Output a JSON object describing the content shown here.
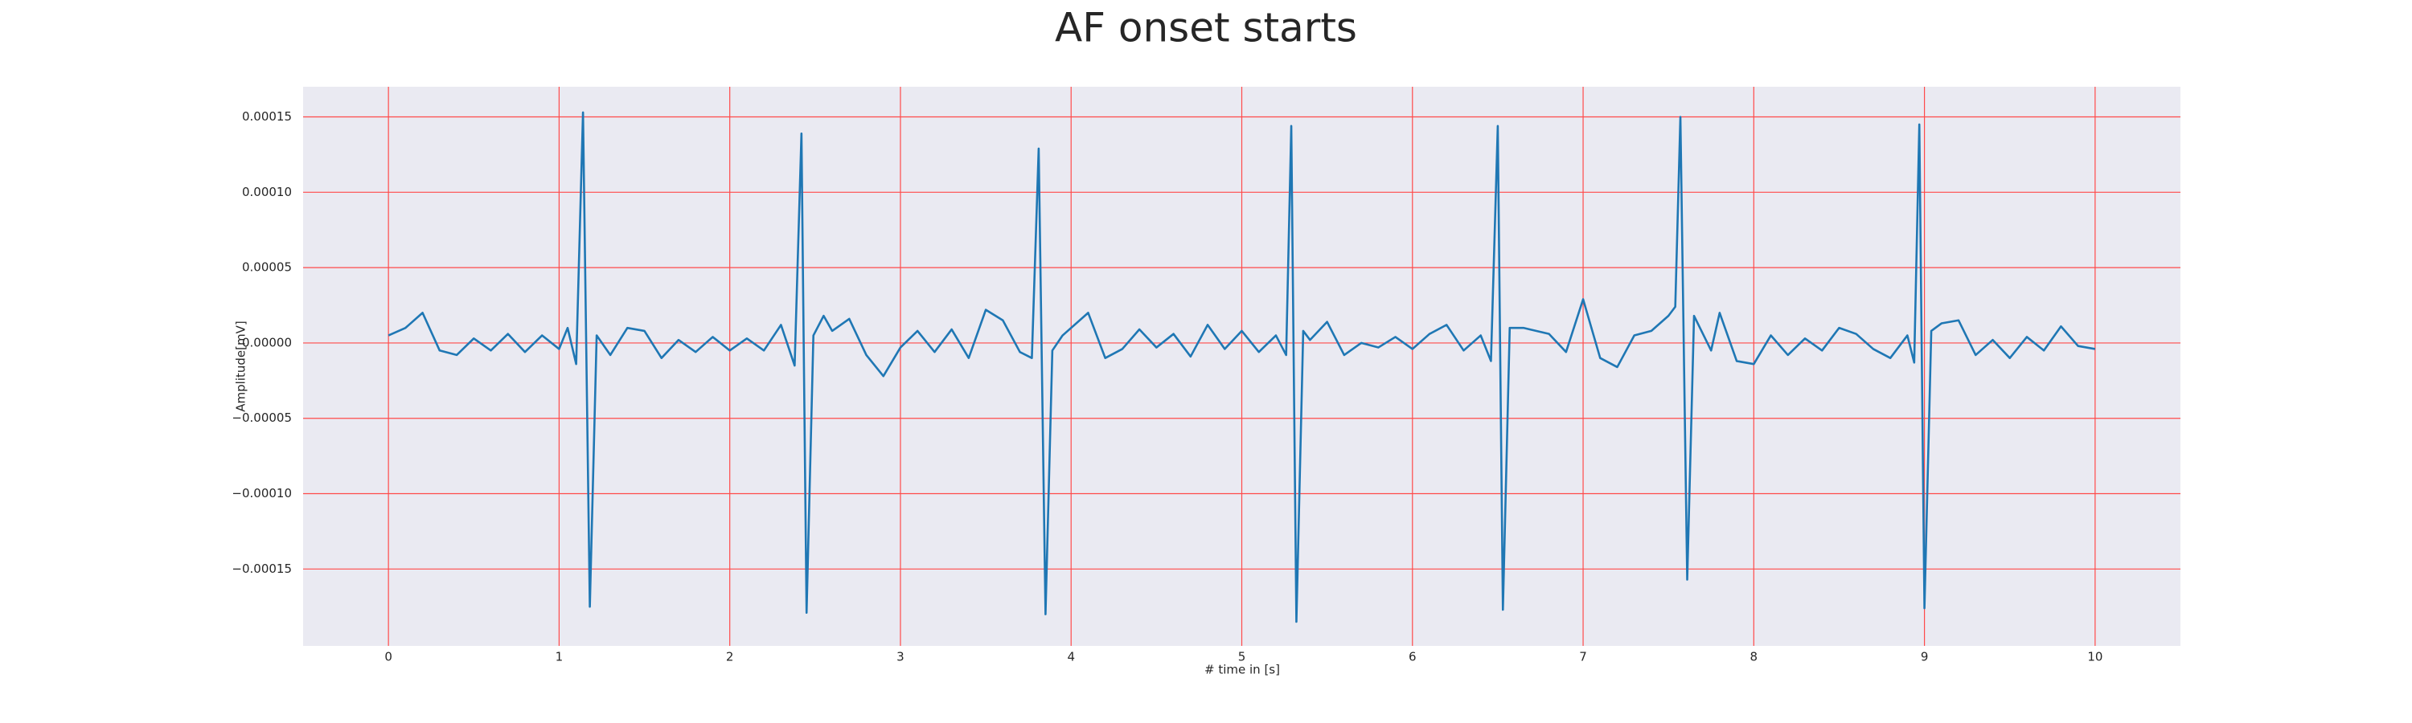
{
  "chart_data": {
    "type": "line",
    "title": "AF onset starts",
    "xlabel": "# time in [s]",
    "ylabel": "Amplitude[mV]",
    "color": "#1f77b4",
    "grid": true,
    "grid_color": "#ff4a4a",
    "background": "#eaeaf2",
    "xlim": [
      -0.5,
      10.5
    ],
    "ylim": [
      -0.000201,
      0.00017
    ],
    "xticks": [
      0,
      1,
      2,
      3,
      4,
      5,
      6,
      7,
      8,
      9,
      10
    ],
    "yticks": [
      {
        "value": -0.00015,
        "label": "−0.00015"
      },
      {
        "value": -0.0001,
        "label": "−0.00010"
      },
      {
        "value": -5e-05,
        "label": "−0.00005"
      },
      {
        "value": 0,
        "label": "0.00000"
      },
      5e-05,
      {
        "value": 0.0001,
        "label": "0.00010"
      },
      0.00015
    ],
    "x": [
      0.0,
      0.1,
      0.2,
      0.3,
      0.4,
      0.5,
      0.6,
      0.7,
      0.8,
      0.9,
      1.0,
      1.05,
      1.1,
      1.14,
      1.18,
      1.22,
      1.3,
      1.4,
      1.5,
      1.6,
      1.7,
      1.8,
      1.9,
      2.0,
      2.1,
      2.2,
      2.3,
      2.38,
      2.42,
      2.45,
      2.49,
      2.55,
      2.6,
      2.7,
      2.8,
      2.9,
      3.0,
      3.1,
      3.2,
      3.3,
      3.4,
      3.5,
      3.6,
      3.7,
      3.77,
      3.81,
      3.85,
      3.89,
      3.95,
      4.1,
      4.2,
      4.3,
      4.4,
      4.5,
      4.6,
      4.7,
      4.8,
      4.9,
      5.0,
      5.1,
      5.2,
      5.26,
      5.29,
      5.32,
      5.36,
      5.4,
      5.5,
      5.6,
      5.7,
      5.8,
      5.9,
      6.0,
      6.1,
      6.2,
      6.3,
      6.4,
      6.46,
      6.5,
      6.53,
      6.57,
      6.65,
      6.8,
      6.9,
      7.0,
      7.1,
      7.2,
      7.3,
      7.4,
      7.5,
      7.54,
      7.57,
      7.61,
      7.65,
      7.75,
      7.8,
      7.9,
      8.0,
      8.1,
      8.2,
      8.3,
      8.4,
      8.5,
      8.6,
      8.7,
      8.8,
      8.9,
      8.94,
      8.97,
      9.0,
      9.04,
      9.1,
      9.2,
      9.3,
      9.4,
      9.5,
      9.6,
      9.7,
      9.8,
      9.9,
      10.0
    ],
    "values": [
      5e-06,
      1e-05,
      2e-05,
      -5e-06,
      -8e-06,
      3e-06,
      -5e-06,
      6e-06,
      -6e-06,
      5e-06,
      -4e-06,
      1e-05,
      -1.4e-05,
      0.000153,
      -0.000175,
      5e-06,
      -8e-06,
      1e-05,
      8e-06,
      -1e-05,
      2e-06,
      -6e-06,
      4e-06,
      -5e-06,
      3e-06,
      -5e-06,
      1.2e-05,
      -1.5e-05,
      0.000139,
      -0.000179,
      5e-06,
      1.8e-05,
      8e-06,
      1.6e-05,
      -8e-06,
      -2.2e-05,
      -3e-06,
      8e-06,
      -6e-06,
      9e-06,
      -1e-05,
      2.2e-05,
      1.5e-05,
      -6e-06,
      -1e-05,
      0.000129,
      -0.00018,
      -5e-06,
      5e-06,
      2e-05,
      -1e-05,
      -4e-06,
      9e-06,
      -3e-06,
      6e-06,
      -9e-06,
      1.2e-05,
      -4e-06,
      8e-06,
      -6e-06,
      5e-06,
      -8e-06,
      0.000144,
      -0.000185,
      8e-06,
      2e-06,
      1.4e-05,
      -8e-06,
      0.0,
      -3e-06,
      4e-06,
      -4e-06,
      6e-06,
      1.2e-05,
      -5e-06,
      5e-06,
      -1.2e-05,
      0.000144,
      -0.000177,
      1e-05,
      1e-05,
      6e-06,
      -6e-06,
      2.9e-05,
      -1e-05,
      -1.6e-05,
      5e-06,
      8e-06,
      1.8e-05,
      2.4e-05,
      0.00015,
      -0.000157,
      1.8e-05,
      -5e-06,
      2e-05,
      -1.2e-05,
      -1.4e-05,
      5e-06,
      -8e-06,
      3e-06,
      -5e-06,
      1e-05,
      6e-06,
      -4e-06,
      -1e-05,
      5e-06,
      -1.3e-05,
      0.000145,
      -0.000176,
      8e-06,
      1.3e-05,
      1.5e-05,
      -8e-06,
      2e-06,
      -1e-05,
      4e-06,
      -5e-06,
      1.1e-05,
      -2e-06,
      -4e-06
    ]
  }
}
